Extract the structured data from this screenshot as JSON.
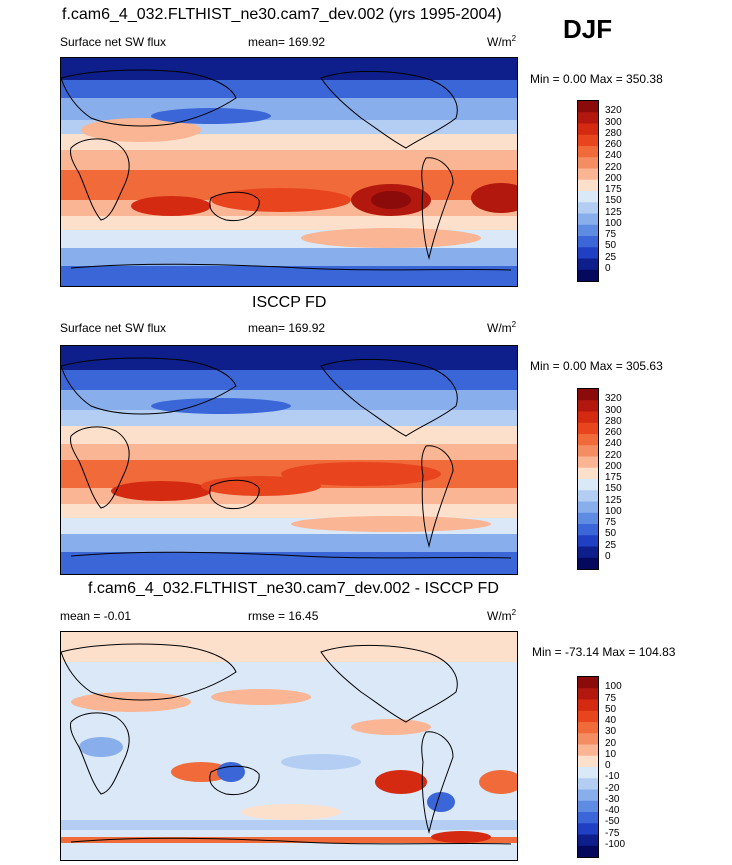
{
  "season": "DJF",
  "panels": [
    {
      "title": "f.cam6_4_032.FLTHIST_ne30.cam7_dev.002 (yrs 1995-2004)",
      "left_label": "Surface net SW flux",
      "center_label": "mean= 169.92",
      "units": "W/m",
      "units_sup": "2",
      "minmax": "Min =   0.00 Max = 350.38"
    },
    {
      "title": "ISCCP FD",
      "left_label": "Surface net SW flux",
      "center_label": "mean= 169.92",
      "units": "W/m",
      "units_sup": "2",
      "minmax": "Min =   0.00 Max = 305.63"
    },
    {
      "title": "f.cam6_4_032.FLTHIST_ne30.cam7_dev.002 - ISCCP FD",
      "left_label": "mean =  -0.01",
      "center_label": "rmse =  16.45",
      "units": "W/m",
      "units_sup": "2",
      "minmax": "Min = -73.14 Max = 104.83"
    }
  ],
  "chart_data": [
    {
      "type": "heatmap",
      "title": "f.cam6_4_032.FLTHIST_ne30.cam7_dev.002 (yrs 1995-2004)",
      "variable": "Surface net SW flux",
      "units": "W/m2",
      "mean": 169.92,
      "min": 0.0,
      "max": 350.38,
      "colorbar_levels": [
        "320",
        "300",
        "280",
        "260",
        "240",
        "220",
        "200",
        "175",
        "150",
        "125",
        "100",
        "75",
        "50",
        "25",
        "0"
      ],
      "colors": [
        "#8b0a0a",
        "#b2180e",
        "#d42a12",
        "#e8451e",
        "#f06a3a",
        "#f58d63",
        "#f9b594",
        "#fde0cc",
        "#dae8f8",
        "#b3cdf3",
        "#89aeec",
        "#5f8ce3",
        "#3a66d8",
        "#1f40c2",
        "#0e1f8c",
        "#05095e"
      ]
    },
    {
      "type": "heatmap",
      "title": "ISCCP FD",
      "variable": "Surface net SW flux",
      "units": "W/m2",
      "mean": 169.92,
      "min": 0.0,
      "max": 305.63,
      "colorbar_levels": [
        "320",
        "300",
        "280",
        "260",
        "240",
        "220",
        "200",
        "175",
        "150",
        "125",
        "100",
        "75",
        "50",
        "25",
        "0"
      ],
      "colors": [
        "#8b0a0a",
        "#b2180e",
        "#d42a12",
        "#e8451e",
        "#f06a3a",
        "#f58d63",
        "#f9b594",
        "#fde0cc",
        "#dae8f8",
        "#b3cdf3",
        "#89aeec",
        "#5f8ce3",
        "#3a66d8",
        "#1f40c2",
        "#0e1f8c",
        "#05095e"
      ]
    },
    {
      "type": "heatmap",
      "title": "f.cam6_4_032.FLTHIST_ne30.cam7_dev.002 - ISCCP FD",
      "units": "W/m2",
      "mean": -0.01,
      "rmse": 16.45,
      "min": -73.14,
      "max": 104.83,
      "colorbar_levels": [
        "100",
        "75",
        "50",
        "40",
        "30",
        "20",
        "10",
        "0",
        "-10",
        "-20",
        "-30",
        "-40",
        "-50",
        "-75",
        "-100"
      ],
      "colors": [
        "#8b0a0a",
        "#b2180e",
        "#d42a12",
        "#e8451e",
        "#f06a3a",
        "#f58d63",
        "#f9b594",
        "#fde0cc",
        "#dae8f8",
        "#b3cdf3",
        "#89aeec",
        "#5f8ce3",
        "#3a66d8",
        "#1f40c2",
        "#0e1f8c",
        "#05095e"
      ]
    }
  ]
}
